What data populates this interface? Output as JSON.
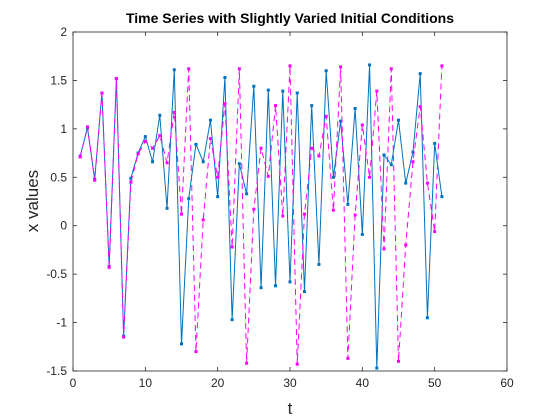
{
  "chart_data": {
    "type": "line",
    "title": "Time Series with Slightly Varied Initial Conditions",
    "xlabel": "t",
    "ylabel": "x values",
    "xlim": [
      0,
      60
    ],
    "ylim": [
      -1.5,
      2
    ],
    "xticks": [
      0,
      10,
      20,
      30,
      40,
      50,
      60
    ],
    "yticks": [
      -1.5,
      -1,
      -0.5,
      0,
      0.5,
      1,
      1.5,
      2
    ],
    "xtick_labels": [
      "0",
      "10",
      "20",
      "30",
      "40",
      "50",
      "60"
    ],
    "ytick_labels": [
      "-1.5",
      "-1",
      "-0.5",
      "0",
      "0.5",
      "1",
      "1.5",
      "2"
    ],
    "grid": false,
    "legend": "none",
    "x": [
      1,
      2,
      3,
      4,
      5,
      6,
      7,
      8,
      9,
      10,
      11,
      12,
      13,
      14,
      15,
      16,
      17,
      18,
      19,
      20,
      21,
      22,
      23,
      24,
      25,
      26,
      27,
      28,
      29,
      30,
      31,
      32,
      33,
      34,
      35,
      36,
      37,
      38,
      39,
      40,
      41,
      42,
      43,
      44,
      45,
      46,
      47,
      48,
      49,
      50,
      51
    ],
    "series": [
      {
        "color": "#0072bd",
        "style": "solid",
        "values": [
          0.72,
          1.01,
          0.48,
          1.37,
          -0.42,
          1.52,
          -1.14,
          0.49,
          0.75,
          0.92,
          0.66,
          1.14,
          0.18,
          1.61,
          -1.22,
          0.28,
          0.84,
          0.66,
          1.09,
          0.3,
          1.53,
          -0.97,
          0.64,
          0.33,
          1.44,
          -0.64,
          1.4,
          -0.62,
          1.39,
          -0.58,
          1.37,
          -0.68,
          1.24,
          -0.4,
          1.6,
          0.5,
          1.08,
          0.22,
          1.21,
          -0.09,
          1.66,
          -1.47,
          0.73,
          0.63,
          1.09,
          0.44,
          0.76,
          1.57,
          -0.95,
          0.85,
          0.3
        ]
      },
      {
        "color": "#ff00ff",
        "style": "dashed",
        "values": [
          0.71,
          1.02,
          0.47,
          1.37,
          -0.43,
          1.52,
          -1.15,
          0.45,
          0.74,
          0.87,
          0.8,
          0.93,
          0.65,
          1.17,
          0.12,
          1.62,
          -1.3,
          0.06,
          0.9,
          0.5,
          1.26,
          -0.22,
          1.62,
          -1.42,
          0.17,
          0.8,
          0.51,
          1.24,
          0.1,
          1.65,
          -1.43,
          0.12,
          0.8,
          0.72,
          1.13,
          0.16,
          1.64,
          -1.37,
          0.11,
          1.04,
          0.5,
          1.39,
          -0.24,
          1.62,
          -1.4,
          -0.2,
          0.66,
          1.23,
          0.44,
          -0.06,
          1.65
        ]
      }
    ]
  }
}
